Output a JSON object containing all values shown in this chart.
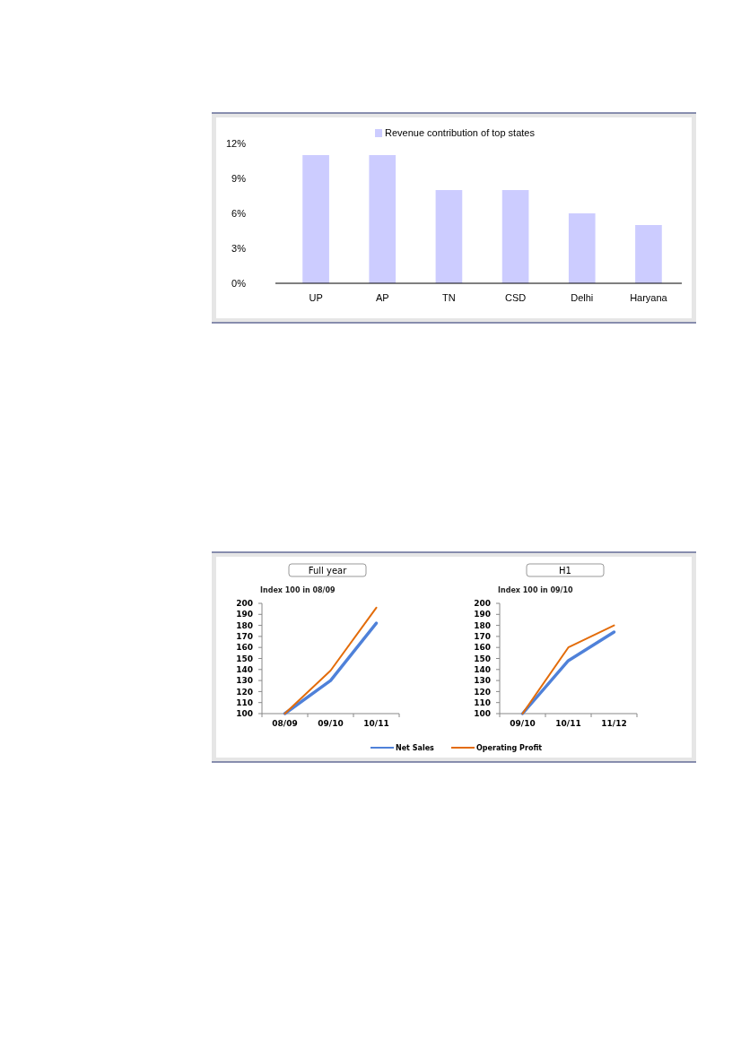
{
  "chart_data": [
    {
      "type": "bar",
      "categories": [
        "UP",
        "AP",
        "TN",
        "CSD",
        "Delhi",
        "Haryana"
      ],
      "series": [
        {
          "name": "Revenue contribution of top states",
          "color": "#ccccff",
          "values": [
            11,
            11,
            8,
            8,
            6,
            5
          ]
        }
      ],
      "ylim": [
        0,
        12
      ],
      "yticks": [
        {
          "value": 0,
          "label": "0%"
        },
        {
          "value": 3,
          "label": "3%"
        },
        {
          "value": 6,
          "label": "6%"
        },
        {
          "value": 9,
          "label": "9%"
        },
        {
          "value": 12,
          "label": "12%"
        }
      ],
      "legend": "top",
      "grid": false
    },
    {
      "type": "line",
      "title": "Full year",
      "ylabel": "Index 100 in 08/09",
      "categories": [
        "08/09",
        "09/10",
        "10/11"
      ],
      "series": [
        {
          "name": "Net Sales",
          "color": "#4f81d9",
          "values": [
            100,
            130,
            182
          ]
        },
        {
          "name": "Operating Profit",
          "color": "#e36c0a",
          "values": [
            100,
            139,
            196
          ]
        }
      ],
      "ylim": [
        100,
        200
      ],
      "yticks": [
        100,
        110,
        120,
        130,
        140,
        150,
        160,
        170,
        180,
        190,
        200
      ],
      "legend": "bottom",
      "grid": false,
      "marker": "none"
    },
    {
      "type": "line",
      "title": "H1",
      "ylabel": "Index 100 in 09/10",
      "categories": [
        "09/10",
        "10/11",
        "11/12"
      ],
      "series": [
        {
          "color": "#4f81d9",
          "values": [
            100,
            148,
            174
          ]
        },
        {
          "color": "#e36c0a",
          "values": [
            100,
            160,
            180
          ]
        }
      ],
      "ylim": [
        100,
        200
      ],
      "yticks": [
        100,
        110,
        120,
        130,
        140,
        150,
        160,
        170,
        180,
        190,
        200
      ],
      "grid": false,
      "marker": "none"
    }
  ]
}
